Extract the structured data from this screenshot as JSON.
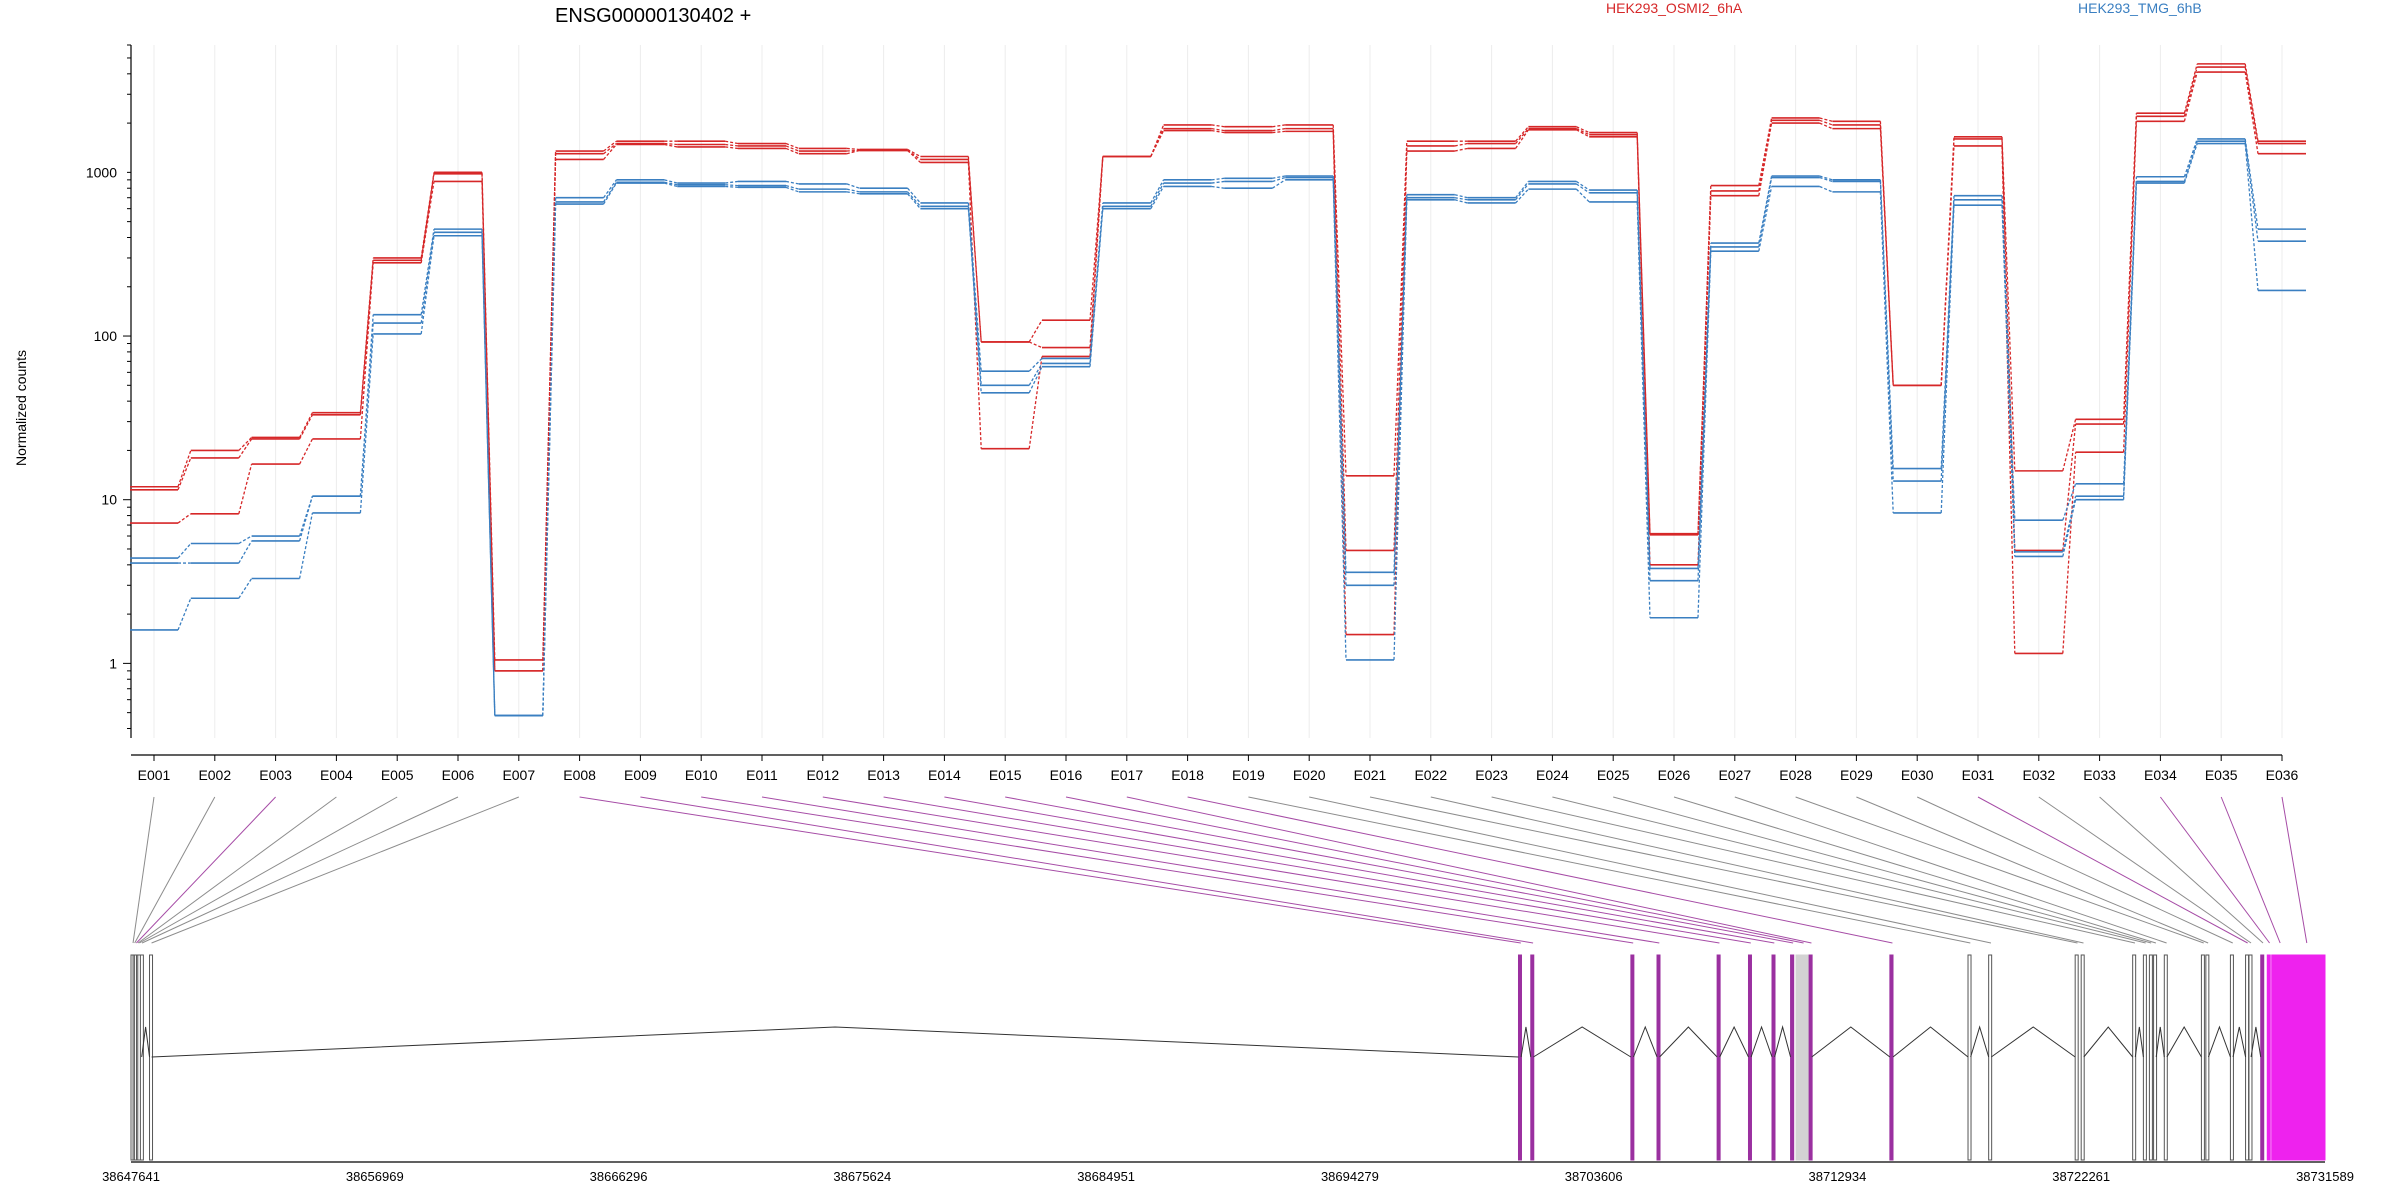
{
  "chart_data": {
    "type": "line",
    "title": "ENSG00000130402 +",
    "ylabel": "Normalized counts",
    "y_scale": "log",
    "ylim": [
      0.35,
      6000
    ],
    "y_ticks": [
      1,
      10,
      100,
      1000
    ],
    "y_tick_labels": [
      "1",
      "10",
      "100",
      "1000"
    ],
    "grid": "vertical",
    "legend": "top-right",
    "legend_entries": [
      {
        "name": "HEK293_OSMI2_6hA",
        "color": "#d62728"
      },
      {
        "name": "HEK293_TMG_6hB",
        "color": "#3a7fc1"
      }
    ],
    "categories": [
      "E001",
      "E002",
      "E003",
      "E004",
      "E005",
      "E006",
      "E007",
      "E008",
      "E009",
      "E010",
      "E011",
      "E012",
      "E013",
      "E014",
      "E015",
      "E016",
      "E017",
      "E018",
      "E019",
      "E020",
      "E021",
      "E022",
      "E023",
      "E024",
      "E025",
      "E026",
      "E027",
      "E028",
      "E029",
      "E030",
      "E031",
      "E032",
      "E033",
      "E034",
      "E035",
      "E036"
    ],
    "series": [
      {
        "name": "HEK293_OSMI2_6hA",
        "color": "#d62728",
        "values": [
          12,
          20,
          24,
          34,
          300,
          1000,
          1.05,
          1350,
          1550,
          1550,
          1500,
          1400,
          1380,
          1250,
          92,
          125,
          1250,
          1950,
          1900,
          1950,
          14,
          1550,
          1550,
          1900,
          1750,
          6.2,
          830,
          2150,
          2050,
          50,
          1650,
          15,
          31,
          2300,
          4600,
          1550
        ]
      },
      {
        "name": "HEK293_OSMI2_6hA",
        "color": "#d62728",
        "values": [
          11.5,
          18,
          23.5,
          33,
          290,
          980,
          0.9,
          1300,
          1500,
          1480,
          1450,
          1350,
          1360,
          1200,
          92,
          85,
          1250,
          1850,
          1800,
          1850,
          4.9,
          1450,
          1500,
          1850,
          1700,
          6.1,
          770,
          2080,
          1950,
          50,
          1600,
          4.9,
          29,
          2200,
          4400,
          1500
        ]
      },
      {
        "name": "HEK293_OSMI2_6hA",
        "color": "#d62728",
        "values": [
          7.2,
          8.2,
          16.5,
          23.5,
          280,
          880,
          0.9,
          1200,
          1480,
          1430,
          1400,
          1300,
          1360,
          1150,
          20.5,
          75,
          1250,
          1800,
          1750,
          1780,
          1.5,
          1350,
          1400,
          1820,
          1650,
          4.0,
          720,
          2000,
          1850,
          50,
          1450,
          1.15,
          19.5,
          2050,
          4100,
          1300
        ]
      },
      {
        "name": "HEK293_TMG_6hB",
        "color": "#3a7fc1",
        "values": [
          4.4,
          5.4,
          6.0,
          10.5,
          135,
          450,
          0.48,
          700,
          900,
          860,
          880,
          850,
          800,
          650,
          61,
          73,
          650,
          900,
          920,
          950,
          3.6,
          730,
          700,
          880,
          780,
          3.8,
          370,
          950,
          900,
          15.5,
          720,
          7.5,
          12.5,
          940,
          1600,
          450
        ]
      },
      {
        "name": "HEK293_TMG_6hB",
        "color": "#3a7fc1",
        "values": [
          4.1,
          4.1,
          5.6,
          10.5,
          120,
          430,
          0.48,
          660,
          870,
          840,
          830,
          790,
          760,
          620,
          50,
          68,
          620,
          860,
          880,
          930,
          3.0,
          700,
          680,
          850,
          750,
          3.2,
          350,
          930,
          880,
          13,
          680,
          4.8,
          10.5,
          880,
          1550,
          380
        ]
      },
      {
        "name": "HEK293_TMG_6hB",
        "color": "#3a7fc1",
        "values": [
          1.6,
          2.5,
          3.3,
          8.3,
          103,
          410,
          0.48,
          640,
          860,
          820,
          810,
          760,
          740,
          600,
          45,
          65,
          600,
          820,
          800,
          900,
          1.05,
          680,
          650,
          790,
          660,
          1.9,
          330,
          820,
          760,
          8.3,
          630,
          4.5,
          10.0,
          860,
          1500,
          190
        ]
      }
    ],
    "gene_model": {
      "coordinate_labels": [
        "38647641",
        "38656969",
        "38666296",
        "38675624",
        "38684951",
        "38694279",
        "38703606",
        "38712934",
        "38722261",
        "38731589"
      ],
      "coordinate_start": 38647641,
      "coordinate_end": 38731589,
      "exonic_parts": [
        {
          "id": "E001",
          "start": 38647641,
          "end": 38647720,
          "color": "#ffffff",
          "link": "#8c8c8c"
        },
        {
          "id": "E002",
          "start": 38647720,
          "end": 38647770,
          "color": "#ffffff",
          "link": "#8c8c8c"
        },
        {
          "id": "E003",
          "start": 38647770,
          "end": 38647850,
          "color": "#ffffff",
          "link": "#a64ca6"
        },
        {
          "id": "E004",
          "start": 38647850,
          "end": 38647900,
          "color": "#ffffff",
          "link": "#8c8c8c"
        },
        {
          "id": "E005",
          "start": 38647900,
          "end": 38647950,
          "color": "#ffffff",
          "link": "#8c8c8c"
        },
        {
          "id": "E006",
          "start": 38648000,
          "end": 38648050,
          "color": "#ffffff",
          "link": "#8c8c8c"
        },
        {
          "id": "E007",
          "start": 38648350,
          "end": 38648430,
          "color": "#ffffff",
          "link": "#8c8c8c"
        },
        {
          "id": "E008",
          "start": 38700730,
          "end": 38700830,
          "color": "#9b30a0",
          "link": "#a64ca6"
        },
        {
          "id": "E009",
          "start": 38701200,
          "end": 38701300,
          "color": "#9b30a0",
          "link": "#a64ca6"
        },
        {
          "id": "E010",
          "start": 38705030,
          "end": 38705130,
          "color": "#9b30a0",
          "link": "#a64ca6"
        },
        {
          "id": "E011",
          "start": 38706030,
          "end": 38706130,
          "color": "#9b30a0",
          "link": "#a64ca6"
        },
        {
          "id": "E012",
          "start": 38708330,
          "end": 38708430,
          "color": "#9b30a0",
          "link": "#a64ca6"
        },
        {
          "id": "E013",
          "start": 38709530,
          "end": 38709630,
          "color": "#9b30a0",
          "link": "#a64ca6"
        },
        {
          "id": "E014",
          "start": 38710430,
          "end": 38710530,
          "color": "#9b30a0",
          "link": "#a64ca6"
        },
        {
          "id": "E015",
          "start": 38711140,
          "end": 38711260,
          "color": "#9b30a0",
          "link": "#a64ca6"
        },
        {
          "id": "E016",
          "start": 38711350,
          "end": 38711850,
          "color": "#d3d3d3",
          "link": "#a64ca6"
        },
        {
          "id": "E017",
          "start": 38711850,
          "end": 38711950,
          "color": "#9b30a0",
          "link": "#a64ca6"
        },
        {
          "id": "E018",
          "start": 38714940,
          "end": 38715060,
          "color": "#9b30a0",
          "link": "#a64ca6"
        },
        {
          "id": "E019",
          "start": 38717930,
          "end": 38718030,
          "color": "#ffffff",
          "link": "#8c8c8c"
        },
        {
          "id": "E020",
          "start": 38718720,
          "end": 38718820,
          "color": "#ffffff",
          "link": "#8c8c8c"
        },
        {
          "id": "E021",
          "start": 38722030,
          "end": 38722130,
          "color": "#ffffff",
          "link": "#8c8c8c"
        },
        {
          "id": "E022",
          "start": 38722260,
          "end": 38722360,
          "color": "#ffffff",
          "link": "#8c8c8c"
        },
        {
          "id": "E023",
          "start": 38724230,
          "end": 38724330,
          "color": "#ffffff",
          "link": "#8c8c8c"
        },
        {
          "id": "E024",
          "start": 38724640,
          "end": 38724740,
          "color": "#ffffff",
          "link": "#8c8c8c"
        },
        {
          "id": "E025",
          "start": 38724870,
          "end": 38724930,
          "color": "#ffffff",
          "link": "#8c8c8c"
        },
        {
          "id": "E026",
          "start": 38725030,
          "end": 38725130,
          "color": "#ffffff",
          "link": "#8c8c8c"
        },
        {
          "id": "E027",
          "start": 38725440,
          "end": 38725540,
          "color": "#ffffff",
          "link": "#8c8c8c"
        },
        {
          "id": "E028",
          "start": 38726860,
          "end": 38726960,
          "color": "#ffffff",
          "link": "#8c8c8c"
        },
        {
          "id": "E029",
          "start": 38727030,
          "end": 38727130,
          "color": "#ffffff",
          "link": "#8c8c8c"
        },
        {
          "id": "E030",
          "start": 38727970,
          "end": 38728070,
          "color": "#ffffff",
          "link": "#8c8c8c"
        },
        {
          "id": "E031",
          "start": 38728550,
          "end": 38728630,
          "color": "#ffffff",
          "link": "#a64ca6"
        },
        {
          "id": "E032",
          "start": 38728680,
          "end": 38728760,
          "color": "#ffffff",
          "link": "#8c8c8c"
        },
        {
          "id": "E033",
          "start": 38729130,
          "end": 38729230,
          "color": "#9b30a0",
          "link": "#8c8c8c"
        },
        {
          "id": "E034",
          "start": 38729380,
          "end": 38729480,
          "color": "#ee22ee",
          "link": "#a64ca6"
        },
        {
          "id": "E035",
          "start": 38729550,
          "end": 38730120,
          "color": "#ee22ee",
          "link": "#a64ca6"
        },
        {
          "id": "E036",
          "start": 38730120,
          "end": 38731589,
          "color": "#ee22ee",
          "link": "#a64ca6"
        }
      ]
    }
  }
}
